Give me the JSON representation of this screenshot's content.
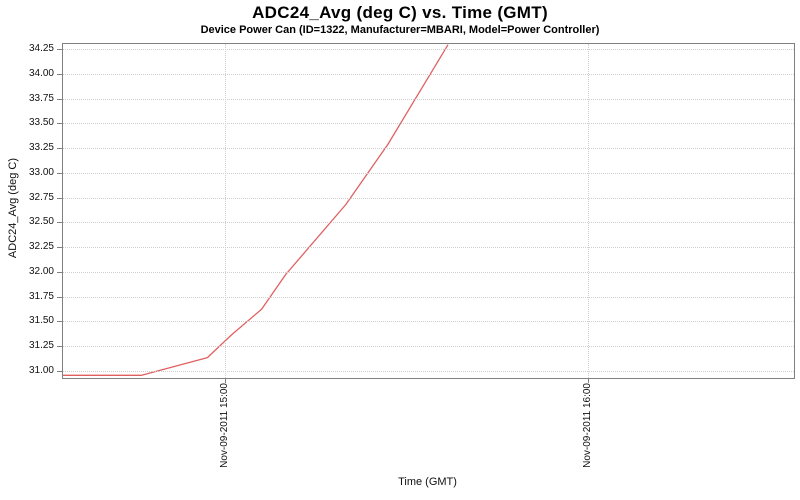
{
  "page": {
    "title": "ADC24_Avg (deg C) vs. Time (GMT)",
    "subtitle": "Device Power Can (ID=1322, Manufacturer=MBARI, Model=Power Controller)"
  },
  "colors": {
    "series_line": "#e06060",
    "gridline": "#cfcfcf",
    "plot_border": "#808080",
    "tick_mark": "#808080",
    "text": "#000000",
    "background": "#ffffff"
  },
  "chart_data": {
    "type": "line",
    "title": "ADC24_Avg (deg C) vs. Time (GMT)",
    "subtitle": "Device Power Can (ID=1322, Manufacturer=MBARI, Model=Power Controller)",
    "xlabel": "Time (GMT)",
    "ylabel": "ADC24_Avg (deg C)",
    "x_tick_labels": [
      "Nov-09-2011 15:00",
      "Nov-09-2011 16:00"
    ],
    "x_tick_times": [
      "15:00",
      "16:00"
    ],
    "x_range_times": [
      "14:33",
      "16:34"
    ],
    "y_ticks": [
      31.0,
      31.25,
      31.5,
      31.75,
      32.0,
      32.25,
      32.5,
      32.75,
      33.0,
      33.25,
      33.5,
      33.75,
      34.0,
      34.25
    ],
    "ylim": [
      30.94,
      34.31
    ],
    "grid": true,
    "legend": "none",
    "series": [
      {
        "name": "ADC24_Avg",
        "color": "#e06060",
        "points": [
          {
            "time": "14:33",
            "value": 30.96
          },
          {
            "time": "14:46",
            "value": 30.96
          },
          {
            "time": "14:57",
            "value": 31.14
          },
          {
            "time": "15:01",
            "value": 31.37
          },
          {
            "time": "15:06",
            "value": 31.63
          },
          {
            "time": "15:10",
            "value": 31.98
          },
          {
            "time": "15:20",
            "value": 32.69
          },
          {
            "time": "15:27",
            "value": 33.3
          },
          {
            "time": "15:37",
            "value": 34.31
          }
        ],
        "note": "Line is flat just below 31.00 until ~14:46, then rises increasingly steeply and exits the top of the plot around 15:37; no data is drawn to the right of that point."
      }
    ]
  }
}
